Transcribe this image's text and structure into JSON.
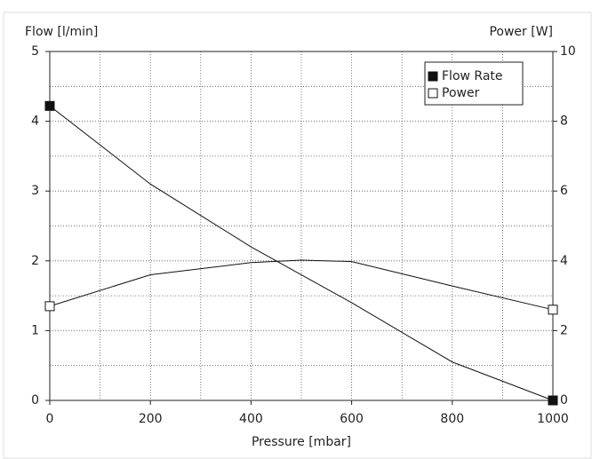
{
  "chart_data": {
    "type": "line",
    "x_label": "Pressure [mbar]",
    "y_label": "Flow [l/min]",
    "y2_label": "Power [W]",
    "x": [
      0,
      200,
      400,
      500,
      600,
      800,
      1000
    ],
    "series": [
      {
        "name": "Flow Rate",
        "color": "#111111",
        "marker_fill": "#111111",
        "values": [
          4.22,
          3.1,
          2.2,
          1.8,
          1.4,
          0.55,
          0
        ]
      },
      {
        "name": "Power",
        "color": "#111111",
        "marker_fill": "#ffffff",
        "axis": "y2",
        "values": [
          2.7,
          3.6,
          3.95,
          4.02,
          3.98,
          3.28,
          2.6
        ]
      }
    ],
    "xlim": [
      0,
      1000
    ],
    "xticks": [
      0,
      200,
      400,
      600,
      800,
      1000
    ],
    "ylim": [
      0,
      5
    ],
    "yticks": [
      0,
      1,
      2,
      3,
      4,
      5
    ],
    "y2lim": [
      0,
      10
    ],
    "y2ticks": [
      0,
      2,
      4,
      6,
      8,
      10
    ],
    "xgrid": [
      100,
      200,
      300,
      400,
      500,
      600,
      700,
      800,
      900
    ],
    "ygrid": [
      0.5,
      1,
      1.5,
      2,
      2.5,
      3,
      3.5,
      4,
      4.5
    ],
    "grid": true,
    "legend": "upper right"
  }
}
